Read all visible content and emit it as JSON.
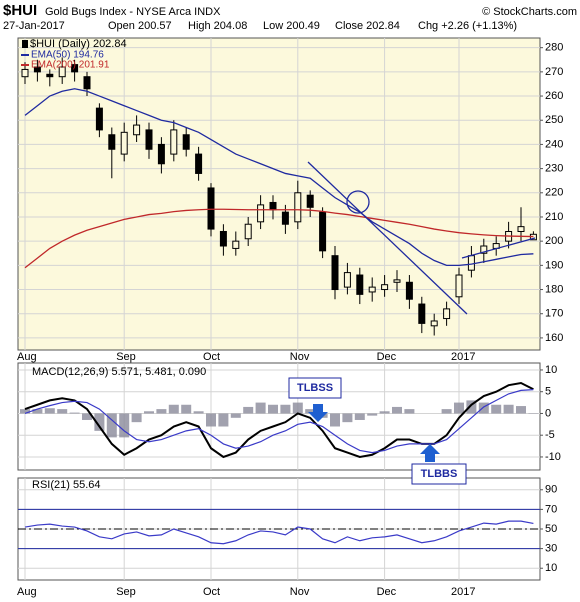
{
  "header": {
    "symbol": "$HUI",
    "title": "Gold Bugs Index - NYSE Arca INDX",
    "source": "© StockCharts.com",
    "date": "27-Jan-2017",
    "quote": [
      "Open 200.57",
      "High 204.08",
      "Low 200.49",
      "Close 202.84",
      "Chg +2.26 (+1.13%)"
    ]
  },
  "annotations": {
    "sell": "TLBSS",
    "buy": "TLBBS"
  },
  "chart_data": [
    {
      "type": "candlestick",
      "name": "$HUI (Daily) 202.84",
      "color": "#000000",
      "categories": [
        "Aug",
        null,
        null,
        null,
        null,
        null,
        null,
        null,
        "Sep",
        null,
        null,
        null,
        null,
        null,
        null,
        "Oct",
        null,
        null,
        null,
        null,
        null,
        null,
        "Nov",
        null,
        null,
        null,
        null,
        null,
        null,
        "Dec",
        null,
        null,
        null,
        null,
        null,
        "2017",
        null,
        null,
        null,
        null,
        null,
        null
      ],
      "open": [
        268,
        272,
        269,
        268,
        273,
        268,
        255,
        244,
        236,
        244,
        246,
        240,
        236,
        244,
        236,
        222,
        204,
        197,
        201,
        208,
        216,
        212,
        208,
        219,
        212,
        194,
        181,
        186,
        179,
        180,
        183,
        183,
        174,
        165,
        168,
        177,
        188,
        195,
        197,
        200,
        204,
        200.57
      ],
      "high": [
        274,
        275,
        271,
        276,
        275,
        270,
        257,
        247,
        249,
        252,
        249,
        243,
        250,
        247,
        239,
        224,
        207,
        204,
        210,
        219,
        219,
        215,
        225,
        221,
        214,
        198,
        191,
        189,
        185,
        186,
        188,
        186,
        177,
        170,
        175,
        189,
        198,
        201,
        202,
        208,
        214,
        204.08
      ],
      "low": [
        265,
        266,
        264,
        265,
        266,
        260,
        243,
        226,
        233,
        241,
        234,
        228,
        233,
        235,
        225,
        202,
        194,
        194,
        198,
        205,
        209,
        203,
        205,
        210,
        193,
        176,
        178,
        174,
        175,
        177,
        179,
        172,
        162,
        161,
        165,
        174,
        185,
        191,
        194,
        197,
        200,
        200.49
      ],
      "close": [
        271,
        270,
        268,
        272,
        270,
        263,
        246,
        238,
        245,
        248,
        238,
        232,
        246,
        238,
        228,
        205,
        198,
        200,
        207,
        215,
        213,
        207,
        220,
        214,
        196,
        180,
        187,
        178,
        181,
        182,
        184,
        176,
        166,
        167,
        172,
        186,
        194,
        198,
        199,
        204,
        206,
        202.84
      ],
      "series": [
        {
          "name": "EMA(50) 194.76",
          "color": "#1f2aa0",
          "values": [
            252,
            256,
            260,
            262,
            263,
            262,
            260,
            258,
            256,
            254,
            252,
            250,
            249,
            247,
            245,
            242,
            239,
            236,
            234,
            232,
            230,
            228,
            227,
            226,
            222,
            218,
            215,
            212,
            208,
            205,
            202,
            199,
            195,
            192,
            190,
            190,
            190.5,
            191.5,
            192.5,
            193.5,
            194.5,
            194.76
          ]
        },
        {
          "name": "EMA(200) 201.91",
          "color": "#c0282a",
          "values": [
            189,
            193,
            197,
            200,
            202.5,
            204.5,
            206,
            207.5,
            209,
            210,
            211,
            211.5,
            212.2,
            212.7,
            213,
            213.2,
            213.2,
            213.1,
            213,
            213,
            213,
            213,
            213,
            212.8,
            212.3,
            211.6,
            211,
            210.2,
            209.4,
            208.6,
            207.8,
            207,
            206,
            205,
            204.2,
            203.5,
            203,
            202.6,
            202.3,
            202.1,
            202,
            201.91
          ]
        }
      ],
      "ylim": [
        155,
        284
      ],
      "yticks": [
        160,
        170,
        180,
        190,
        200,
        210,
        220,
        230,
        240,
        250,
        260,
        270,
        280
      ],
      "grid": true
    },
    {
      "type": "macd",
      "legend": "MACD(12,26,9) 5.571, 5.481, 0.090",
      "series": [
        {
          "color": "#000000",
          "values": [
            1,
            2,
            3,
            3.5,
            3,
            1,
            -3,
            -7,
            -9.5,
            -8,
            -6,
            -5,
            -3,
            -2,
            -3,
            -8,
            -10,
            -9,
            -6,
            -4,
            -3,
            -2,
            0,
            -1,
            -4,
            -8,
            -9,
            -10,
            -9.5,
            -8,
            -6,
            -6,
            -7,
            -7,
            -5,
            -1,
            2,
            4,
            5,
            6.5,
            7,
            5.571
          ]
        },
        {
          "color": "#3a3ac8",
          "values": [
            0,
            1,
            1.8,
            2.5,
            2.8,
            2.5,
            1,
            -1.5,
            -4,
            -6,
            -6.5,
            -6,
            -5,
            -4,
            -3.5,
            -5,
            -7,
            -8,
            -7.5,
            -6.5,
            -5,
            -4,
            -2.5,
            -2,
            -3,
            -5,
            -7,
            -8.5,
            -9,
            -8.5,
            -7.5,
            -7,
            -7,
            -7,
            -6,
            -3.5,
            -1,
            1.5,
            3,
            4.5,
            5.3,
            5.481
          ]
        }
      ],
      "histogram": {
        "color": "#8a8a9a",
        "values": [
          1,
          1,
          1.2,
          1,
          0.2,
          -1.5,
          -4,
          -5.5,
          -5.5,
          -2,
          0.5,
          1,
          2,
          2,
          0.5,
          -3,
          -3,
          -1,
          1.5,
          2.5,
          2,
          2,
          2.5,
          1,
          -1,
          -3,
          -2,
          -1.5,
          -0.5,
          0.5,
          1.5,
          1,
          0,
          0,
          1,
          2.5,
          3,
          2.5,
          2,
          2,
          1.7,
          0.09
        ]
      },
      "ylim": [
        -13,
        11.6
      ],
      "yticks": [
        10,
        5,
        0,
        -5,
        -10
      ],
      "grid": true
    },
    {
      "type": "rsi",
      "legend": "RSI(21) 55.64",
      "categories": [
        "Aug",
        null,
        null,
        null,
        null,
        null,
        null,
        null,
        "Sep",
        null,
        null,
        null,
        null,
        null,
        null,
        "Oct",
        null,
        null,
        null,
        null,
        null,
        null,
        "Nov",
        null,
        null,
        null,
        null,
        null,
        null,
        "Dec",
        null,
        null,
        null,
        null,
        null,
        "2017",
        null,
        null,
        null,
        null,
        null,
        null
      ],
      "series": [
        {
          "color": "#3a3ac8",
          "values": [
            52,
            54,
            55,
            53,
            52,
            48,
            42,
            40,
            45,
            47,
            43,
            44,
            50,
            46,
            42,
            36,
            35,
            38,
            44,
            48,
            47,
            44,
            52,
            50,
            40,
            36,
            42,
            38,
            41,
            42,
            44,
            40,
            36,
            38,
            42,
            48,
            52,
            56,
            55,
            58,
            58,
            55.64
          ]
        }
      ],
      "reference_lines": [
        70,
        50,
        30
      ],
      "ylim": [
        -2,
        102
      ],
      "yticks": [
        90,
        70,
        50,
        30,
        10
      ],
      "grid": true
    }
  ]
}
